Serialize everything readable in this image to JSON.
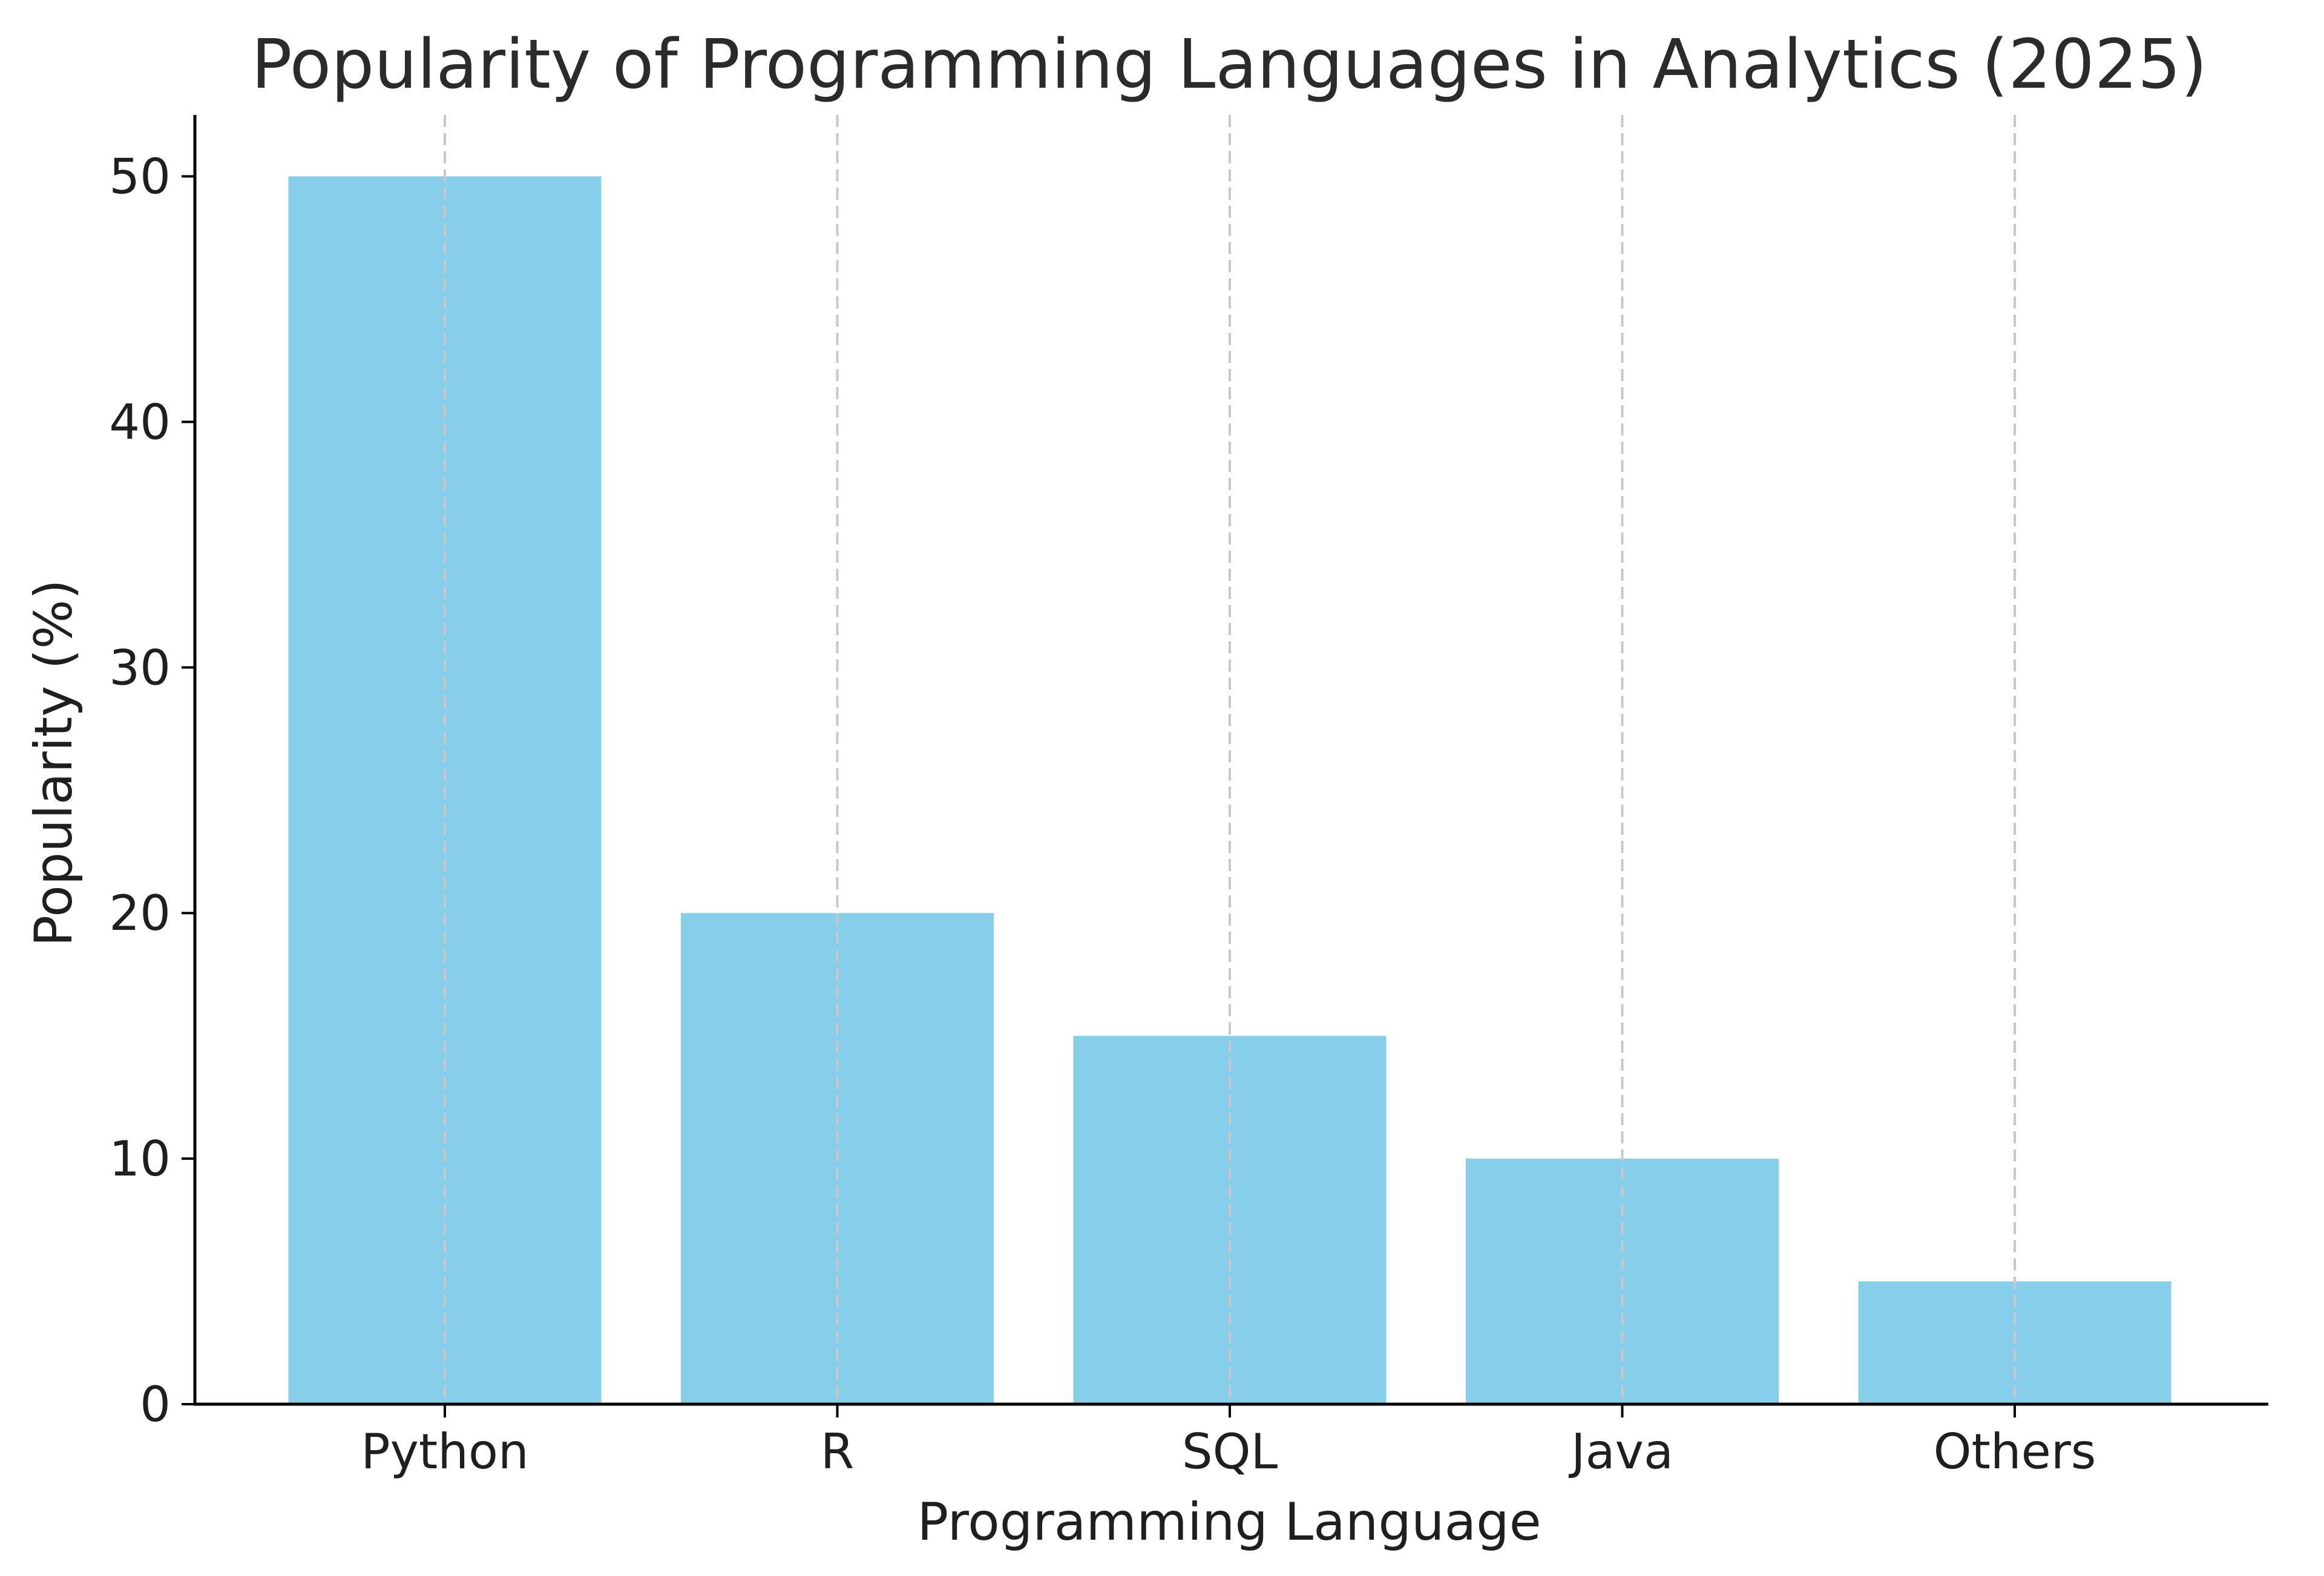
{
  "chart_data": {
    "type": "bar",
    "title": "Popularity of Programming Languages in Analytics (2025)",
    "xlabel": "Programming Language",
    "ylabel": "Popularity (%)",
    "categories": [
      "Python",
      "R",
      "SQL",
      "Java",
      "Others"
    ],
    "values": [
      50,
      20,
      15,
      10,
      5
    ],
    "ylim": [
      0,
      52.5
    ],
    "yticks": [
      0,
      10,
      20,
      30,
      40,
      50
    ],
    "grid": "vertical dashed",
    "legend": "none",
    "bar_color": "#87CEEB",
    "grid_color": "#c8c8c8",
    "axis_color": "#000000"
  }
}
